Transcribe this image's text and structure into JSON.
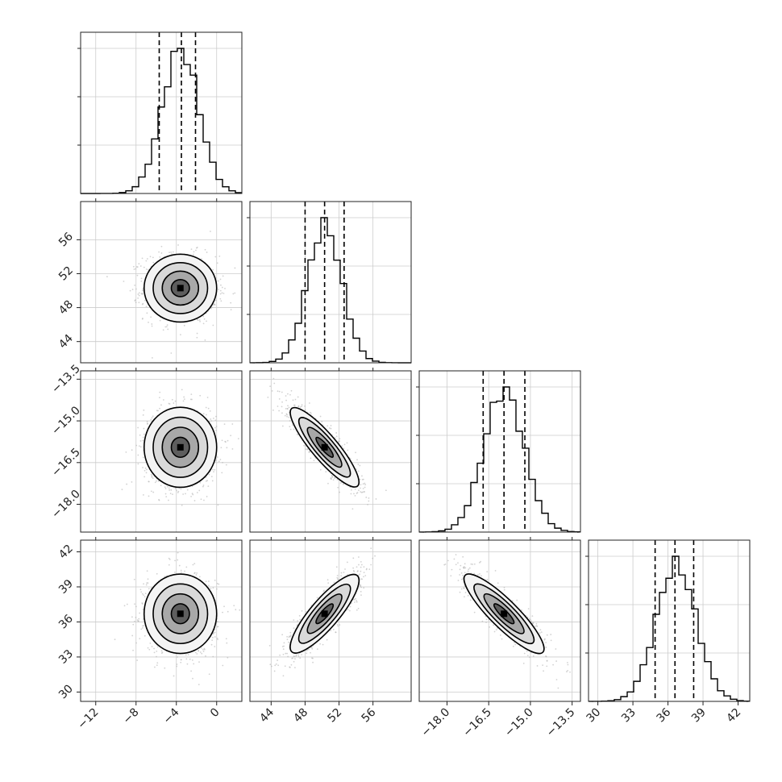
{
  "chart_data": {
    "type": "corner",
    "parameters": [
      {
        "range": [
          -13.5,
          2.5
        ],
        "ticks": [
          -12,
          -8,
          -4,
          0
        ],
        "tick_labels": [
          "−12",
          "−8",
          "−4",
          "0"
        ],
        "mean": -3.6,
        "sd": 1.8,
        "quantiles": [
          -5.7,
          -3.5,
          -2.1
        ]
      },
      {
        "range": [
          41.5,
          60.5
        ],
        "ticks": [
          44,
          48,
          52,
          56
        ],
        "tick_labels": [
          "44",
          "48",
          "52",
          "56"
        ],
        "mean": 50.3,
        "sd": 2.0,
        "quantiles": [
          48.0,
          50.3,
          52.6
        ]
      },
      {
        "range": [
          -19.0,
          -13.2
        ],
        "ticks": [
          -18.0,
          -16.5,
          -15.0,
          -13.5
        ],
        "tick_labels": [
          "−18.0",
          "−16.5",
          "−15.0",
          "−13.5"
        ],
        "mean": -15.95,
        "sd": 0.72,
        "quantiles": [
          -16.7,
          -15.95,
          -15.2
        ]
      },
      {
        "range": [
          29.2,
          43.0
        ],
        "ticks": [
          30,
          33,
          36,
          39,
          42
        ],
        "tick_labels": [
          "30",
          "33",
          "36",
          "39",
          "42"
        ],
        "mean": 36.7,
        "sd": 1.7,
        "quantiles": [
          34.9,
          36.6,
          38.2
        ]
      }
    ],
    "correlations": [
      {
        "row": 1,
        "col": 0,
        "rho": -0.05
      },
      {
        "row": 2,
        "col": 0,
        "rho": 0.0
      },
      {
        "row": 2,
        "col": 1,
        "rho": -0.88
      },
      {
        "row": 3,
        "col": 0,
        "rho": -0.05
      },
      {
        "row": 3,
        "col": 1,
        "rho": 0.85
      },
      {
        "row": 3,
        "col": 2,
        "rho": -0.88
      }
    ],
    "contour_levels_sigma": [
      0.5,
      1.0,
      1.5,
      2.0
    ],
    "grid": true,
    "colors": {
      "line": "#000000",
      "scatter": "#b4b4b4",
      "grid": "#cccccc"
    }
  }
}
